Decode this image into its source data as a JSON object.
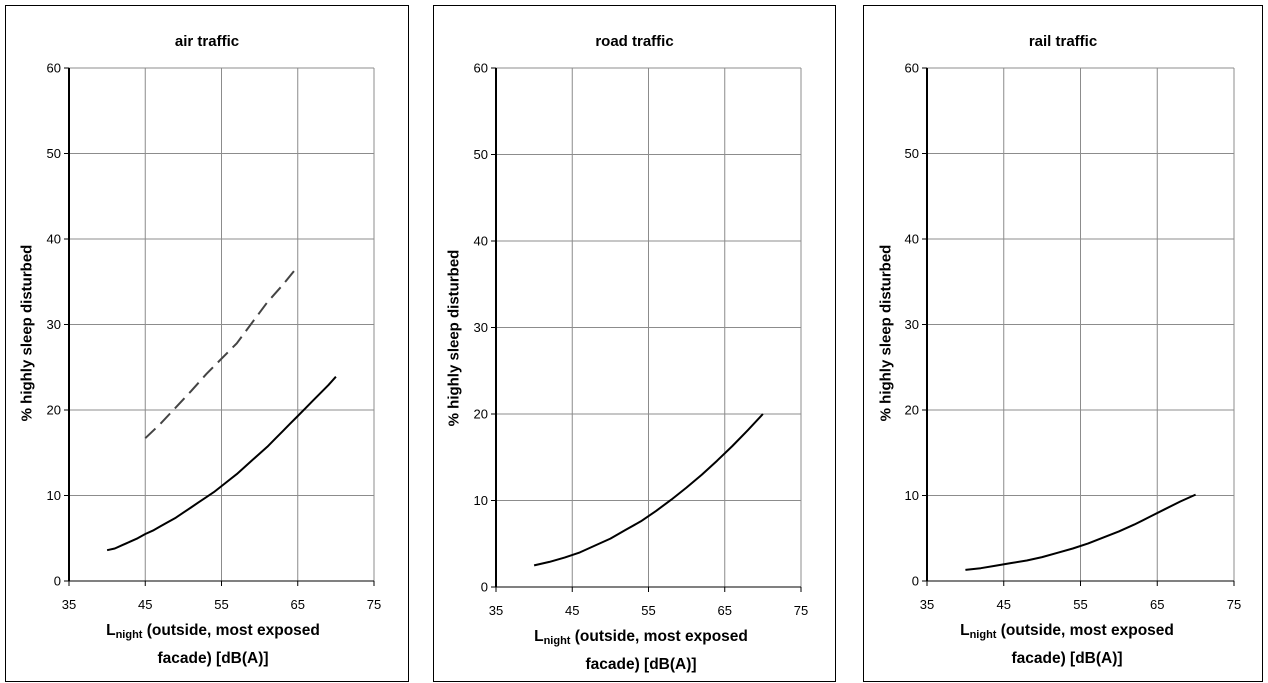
{
  "chart_data": [
    {
      "type": "line",
      "title": "air traffic",
      "xlabel_main": "L",
      "xlabel_sub": "night",
      "xlabel_rest1": " (outside, most exposed",
      "xlabel_line2": "facade) [dB(A)]",
      "ylabel": "% highly sleep disturbed",
      "xlim": [
        35,
        75
      ],
      "ylim": [
        0,
        60
      ],
      "xticks": [
        "35",
        "45",
        "55",
        "65",
        "75"
      ],
      "yticks": [
        "0",
        "10",
        "20",
        "30",
        "40",
        "50",
        "60"
      ],
      "grid": true,
      "series": [
        {
          "style": "solid",
          "x": [
            40,
            41,
            42,
            43,
            44,
            45,
            46,
            47,
            48,
            49,
            50,
            51,
            52,
            53,
            54,
            55,
            56,
            57,
            58,
            59,
            60,
            61,
            62,
            63,
            64,
            65,
            66,
            67,
            68,
            69,
            70
          ],
          "y": [
            3.6,
            3.8,
            4.2,
            4.6,
            5.0,
            5.5,
            5.9,
            6.4,
            6.9,
            7.4,
            8.0,
            8.6,
            9.2,
            9.8,
            10.4,
            11.1,
            11.8,
            12.5,
            13.3,
            14.1,
            14.9,
            15.7,
            16.6,
            17.5,
            18.4,
            19.3,
            20.2,
            21.1,
            22.0,
            22.9,
            23.9
          ]
        },
        {
          "style": "dashed",
          "x": [
            45,
            47,
            49,
            51,
            53,
            55,
            57,
            59,
            61,
            63,
            65
          ],
          "y": [
            16.7,
            18.4,
            20.3,
            22.2,
            24.2,
            26.0,
            27.8,
            30.2,
            32.6,
            34.6,
            36.8
          ]
        }
      ]
    },
    {
      "type": "line",
      "title": "road traffic",
      "xlabel_main": "L",
      "xlabel_sub": "night",
      "xlabel_rest1": " (outside, most exposed",
      "xlabel_line2": "facade) [dB(A)]",
      "ylabel": "% highly sleep disturbed",
      "xlim": [
        35,
        75
      ],
      "ylim": [
        0,
        60
      ],
      "xticks": [
        "35",
        "45",
        "55",
        "65",
        "75"
      ],
      "yticks": [
        "0",
        "10",
        "20",
        "30",
        "40",
        "50",
        "60"
      ],
      "grid": true,
      "series": [
        {
          "style": "solid",
          "x": [
            40,
            42,
            44,
            46,
            48,
            50,
            52,
            54,
            56,
            58,
            60,
            62,
            64,
            66,
            68,
            70
          ],
          "y": [
            2.5,
            2.9,
            3.4,
            4.0,
            4.8,
            5.6,
            6.6,
            7.6,
            8.8,
            10.1,
            11.5,
            13.0,
            14.6,
            16.3,
            18.1,
            20.0
          ]
        }
      ]
    },
    {
      "type": "line",
      "title": "rail traffic",
      "xlabel_main": "L",
      "xlabel_sub": "night",
      "xlabel_rest1": " (outside, most exposed",
      "xlabel_line2": "facade) [dB(A)]",
      "ylabel": "% highly sleep disturbed",
      "xlim": [
        35,
        75
      ],
      "ylim": [
        0,
        60
      ],
      "xticks": [
        "35",
        "45",
        "55",
        "65",
        "75"
      ],
      "yticks": [
        "0",
        "10",
        "20",
        "30",
        "40",
        "50",
        "60"
      ],
      "grid": true,
      "series": [
        {
          "style": "solid",
          "x": [
            40,
            42,
            44,
            46,
            48,
            50,
            52,
            54,
            56,
            58,
            60,
            62,
            64,
            66,
            68,
            70
          ],
          "y": [
            1.3,
            1.5,
            1.8,
            2.1,
            2.4,
            2.8,
            3.3,
            3.8,
            4.4,
            5.1,
            5.8,
            6.6,
            7.5,
            8.4,
            9.3,
            10.1
          ]
        }
      ]
    }
  ]
}
